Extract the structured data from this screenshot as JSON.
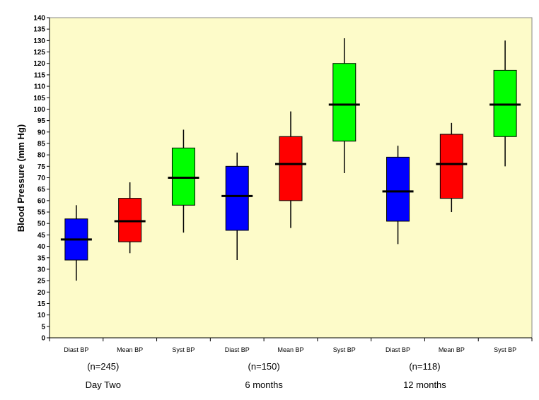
{
  "chart_data": {
    "type": "box",
    "ylabel": "Blood Pressure (mm Hg)",
    "xlabel": "",
    "ylim": [
      0,
      140
    ],
    "ytick_step": 5,
    "grid": false,
    "background_color": "#fdfbc9",
    "categories": [
      "Diast BP",
      "Mean BP",
      "Syst BP",
      "Diast BP",
      "Mean BP",
      "Syst BP",
      "Diast BP",
      "Mean BP",
      "Syst BP"
    ],
    "groups": [
      {
        "n_label": "(n=245)",
        "label": "Day Two"
      },
      {
        "n_label": "(n=150)",
        "label": "6 months"
      },
      {
        "n_label": "(n=118)",
        "label": "12 months"
      }
    ],
    "boxes": [
      {
        "category": "Diast BP",
        "group": "Day Two",
        "whisker_low": 25,
        "q1": 34,
        "median": 43,
        "q3": 52,
        "whisker_high": 58,
        "color": "#0000ff"
      },
      {
        "category": "Mean BP",
        "group": "Day Two",
        "whisker_low": 37,
        "q1": 42,
        "median": 51,
        "q3": 61,
        "whisker_high": 68,
        "color": "#ff0000"
      },
      {
        "category": "Syst BP",
        "group": "Day Two",
        "whisker_low": 46,
        "q1": 58,
        "median": 70,
        "q3": 83,
        "whisker_high": 91,
        "color": "#00ff00"
      },
      {
        "category": "Diast BP",
        "group": "6 months",
        "whisker_low": 34,
        "q1": 47,
        "median": 62,
        "q3": 75,
        "whisker_high": 81,
        "color": "#0000ff"
      },
      {
        "category": "Mean BP",
        "group": "6 months",
        "whisker_low": 48,
        "q1": 60,
        "median": 76,
        "q3": 88,
        "whisker_high": 99,
        "color": "#ff0000"
      },
      {
        "category": "Syst BP",
        "group": "6 months",
        "whisker_low": 72,
        "q1": 86,
        "median": 102,
        "q3": 120,
        "whisker_high": 131,
        "color": "#00ff00"
      },
      {
        "category": "Diast BP",
        "group": "12 months",
        "whisker_low": 41,
        "q1": 51,
        "median": 64,
        "q3": 79,
        "whisker_high": 84,
        "color": "#0000ff"
      },
      {
        "category": "Mean BP",
        "group": "12 months",
        "whisker_low": 55,
        "q1": 61,
        "median": 76,
        "q3": 89,
        "whisker_high": 94,
        "color": "#ff0000"
      },
      {
        "category": "Syst BP",
        "group": "12 months",
        "whisker_low": 75,
        "q1": 88,
        "median": 102,
        "q3": 117,
        "whisker_high": 130,
        "color": "#00ff00"
      }
    ]
  }
}
